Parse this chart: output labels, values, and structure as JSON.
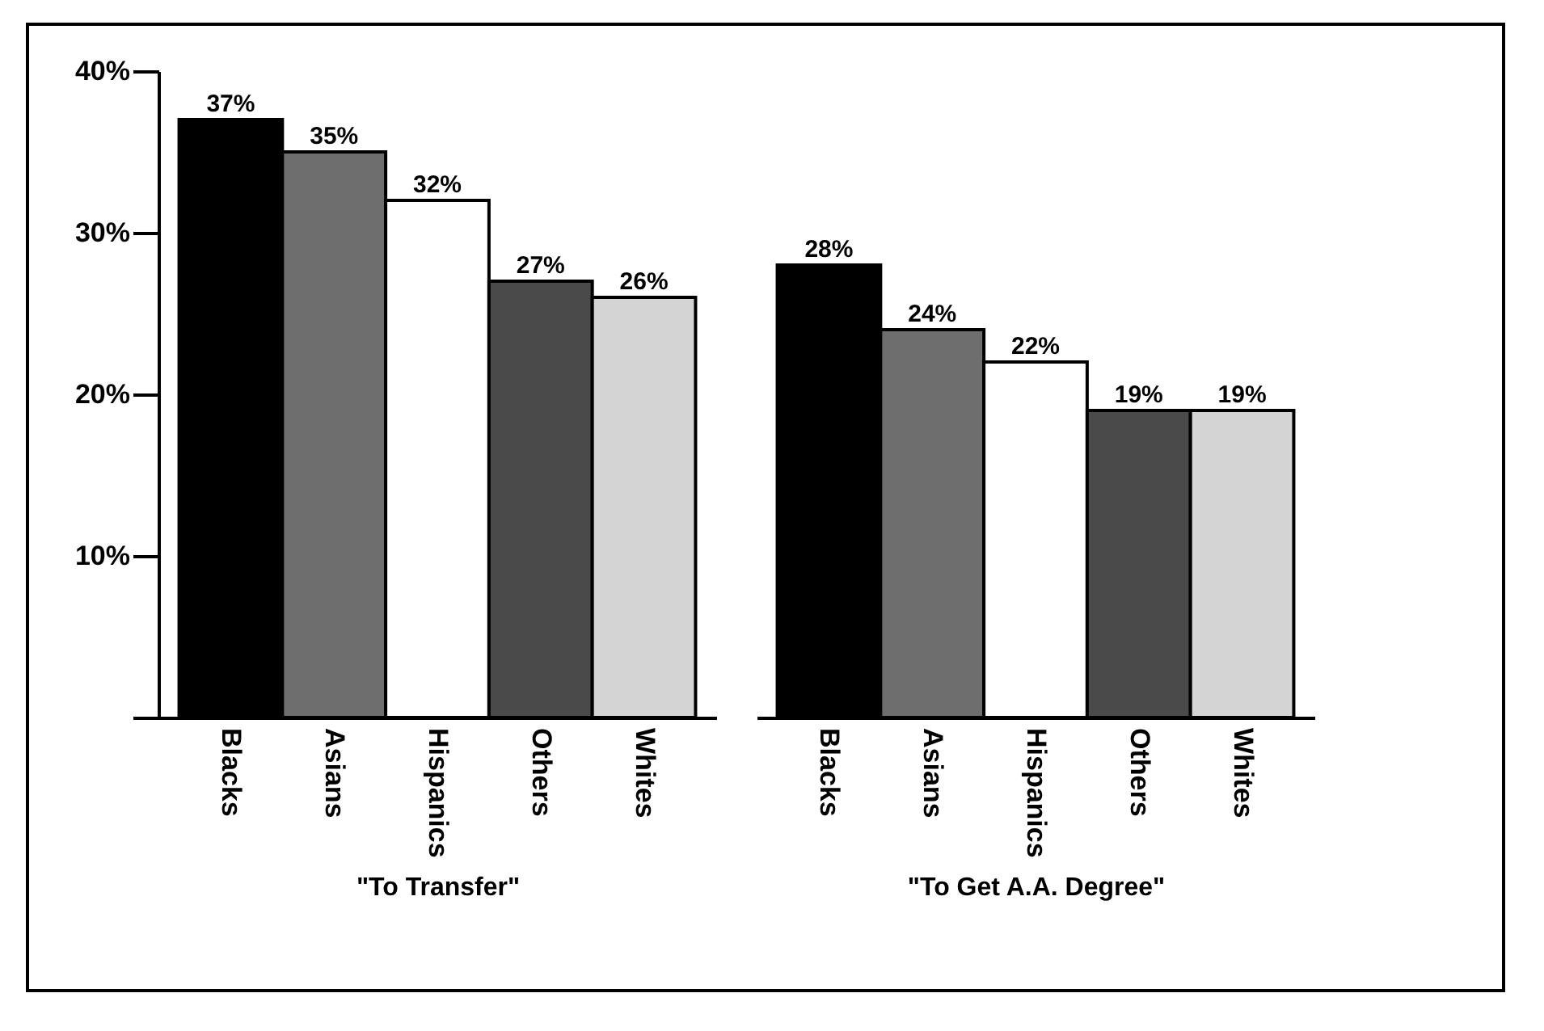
{
  "chart_data": [
    {
      "type": "bar",
      "xlabel": "\"To Transfer\"",
      "categories": [
        "Blacks",
        "Asians",
        "Hispanics",
        "Others",
        "Whites"
      ],
      "values": [
        37,
        35,
        32,
        27,
        26
      ],
      "colors": [
        "#000000",
        "#6e6e6e",
        "#ffffff",
        "#4a4a4a",
        "#d4d4d4"
      ],
      "value_labels": [
        "37%",
        "35%",
        "32%",
        "27%",
        "26%"
      ],
      "ylim": [
        0,
        40
      ],
      "yticks": [
        {
          "value": 0,
          "label": null
        },
        {
          "value": 10,
          "label": "10%"
        },
        {
          "value": 20,
          "label": "20%"
        },
        {
          "value": 30,
          "label": "30%"
        },
        {
          "value": 40,
          "label": "40%"
        }
      ]
    },
    {
      "type": "bar",
      "xlabel": "\"To Get A.A. Degree\"",
      "categories": [
        "Blacks",
        "Asians",
        "Hispanics",
        "Others",
        "Whites"
      ],
      "values": [
        28,
        24,
        22,
        19,
        19
      ],
      "colors": [
        "#000000",
        "#6e6e6e",
        "#ffffff",
        "#4a4a4a",
        "#d4d4d4"
      ],
      "value_labels": [
        "28%",
        "24%",
        "22%",
        "19%",
        "19%"
      ],
      "ylim": [
        0,
        40
      ],
      "tick_labels": "x"
    }
  ]
}
